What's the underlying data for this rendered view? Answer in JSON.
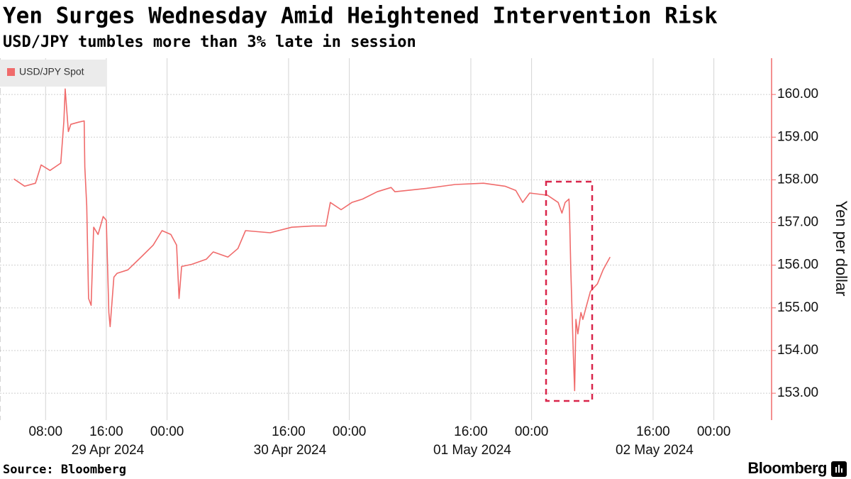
{
  "chart_data": {
    "type": "line",
    "title": "Yen Surges Wednesday Amid Heightened Intervention Risk",
    "subtitle": "USD/JPY tumbles more than 3% late in session",
    "y_label": "Yen per dollar",
    "source": "Source: Bloomberg",
    "brand": "Bloomberg",
    "grid": true,
    "legend": "top-left",
    "x": [
      "2024-04-29 03:50",
      "2024-04-29 05:15",
      "2024-04-29 06:40",
      "2024-04-29 07:25",
      "2024-04-29 08:35",
      "2024-04-29 10:00",
      "2024-04-29 10:25",
      "2024-04-29 10:35",
      "2024-04-29 11:00",
      "2024-04-29 11:20",
      "2024-04-29 12:20",
      "2024-04-29 13:05",
      "2024-04-29 13:10",
      "2024-04-29 13:25",
      "2024-04-29 13:40",
      "2024-04-29 14:00",
      "2024-04-29 14:20",
      "2024-04-29 14:55",
      "2024-04-29 15:35",
      "2024-04-29 16:00",
      "2024-04-29 16:20",
      "2024-04-29 16:30",
      "2024-04-29 17:00",
      "2024-04-29 17:25",
      "2024-04-29 18:50",
      "2024-04-29 20:45",
      "2024-04-29 22:10",
      "2024-04-29 23:20",
      "2024-04-30 00:30",
      "2024-04-30 01:15",
      "2024-04-30 01:35",
      "2024-04-30 01:55",
      "2024-04-30 03:15",
      "2024-04-30 05:10",
      "2024-04-30 06:05",
      "2024-04-30 08:00",
      "2024-04-30 09:20",
      "2024-04-30 10:20",
      "2024-04-30 13:35",
      "2024-04-30 16:25",
      "2024-04-30 19:10",
      "2024-04-30 20:55",
      "2024-04-30 21:30",
      "2024-04-30 22:55",
      "2024-05-01 00:20",
      "2024-05-01 01:45",
      "2024-05-01 03:40",
      "2024-05-01 05:30",
      "2024-05-01 06:00",
      "2024-05-01 10:10",
      "2024-05-01 13:55",
      "2024-05-01 17:40",
      "2024-05-01 20:30",
      "2024-05-01 21:55",
      "2024-05-01 22:50",
      "2024-05-01 23:45",
      "2024-05-02 02:05",
      "2024-05-02 03:30",
      "2024-05-02 04:00",
      "2024-05-02 04:25",
      "2024-05-02 04:55",
      "2024-05-02 05:00",
      "2024-05-02 05:10",
      "2024-05-02 05:30",
      "2024-05-02 05:40",
      "2024-05-02 05:50",
      "2024-05-02 06:05",
      "2024-05-02 06:30",
      "2024-05-02 06:45",
      "2024-05-02 07:15",
      "2024-05-02 07:45",
      "2024-05-02 08:40",
      "2024-05-02 09:25",
      "2024-05-02 10:20"
    ],
    "series": [
      {
        "name": "USD/JPY Spot",
        "color": "#f06b6b",
        "values": [
          158.02,
          157.85,
          157.92,
          158.35,
          158.22,
          158.39,
          159.38,
          160.13,
          159.13,
          159.3,
          159.35,
          159.38,
          158.3,
          157.39,
          155.22,
          155.06,
          156.89,
          156.72,
          157.14,
          157.05,
          154.89,
          154.56,
          155.72,
          155.81,
          155.89,
          156.22,
          156.47,
          156.81,
          156.72,
          156.47,
          155.22,
          155.97,
          156.02,
          156.14,
          156.31,
          156.19,
          156.39,
          156.81,
          156.76,
          156.89,
          156.92,
          156.92,
          157.47,
          157.3,
          157.47,
          157.55,
          157.72,
          157.82,
          157.72,
          157.8,
          157.89,
          157.92,
          157.85,
          157.75,
          157.47,
          157.69,
          157.64,
          157.47,
          157.22,
          157.47,
          157.55,
          157.22,
          155.89,
          153.89,
          153.06,
          154.73,
          154.39,
          154.89,
          154.73,
          155.06,
          155.39,
          155.56,
          155.89,
          156.19
        ]
      }
    ],
    "xlim": [
      "2024-04-29 02:00",
      "2024-05-03 07:36"
    ],
    "xticks": [
      {
        "value": "2024-04-29 08:00",
        "label": "08:00"
      },
      {
        "value": "2024-04-29 16:00",
        "label": "16:00"
      },
      {
        "value": "2024-04-30 00:00",
        "label": "00:00"
      },
      {
        "value": "2024-04-30 16:00",
        "label": "16:00"
      },
      {
        "value": "2024-05-01 00:00",
        "label": "00:00"
      },
      {
        "value": "2024-05-01 16:00",
        "label": "16:00"
      },
      {
        "value": "2024-05-02 00:00",
        "label": "00:00"
      },
      {
        "value": "2024-05-02 16:00",
        "label": "16:00"
      },
      {
        "value": "2024-05-03 00:00",
        "label": "00:00"
      }
    ],
    "x_date_labels": [
      "29 Apr 2024",
      "30 Apr 2024",
      "01 May 2024",
      "02 May 2024"
    ],
    "ylim": [
      152.37,
      160.85
    ],
    "yticks": [
      {
        "value": 153,
        "label": "153.00"
      },
      {
        "value": 154,
        "label": "154.00"
      },
      {
        "value": 155,
        "label": "155.00"
      },
      {
        "value": 156,
        "label": "156.00"
      },
      {
        "value": 157,
        "label": "157.00"
      },
      {
        "value": 158,
        "label": "158.00"
      },
      {
        "value": 159,
        "label": "159.00"
      },
      {
        "value": 160,
        "label": "160.00"
      }
    ]
  }
}
